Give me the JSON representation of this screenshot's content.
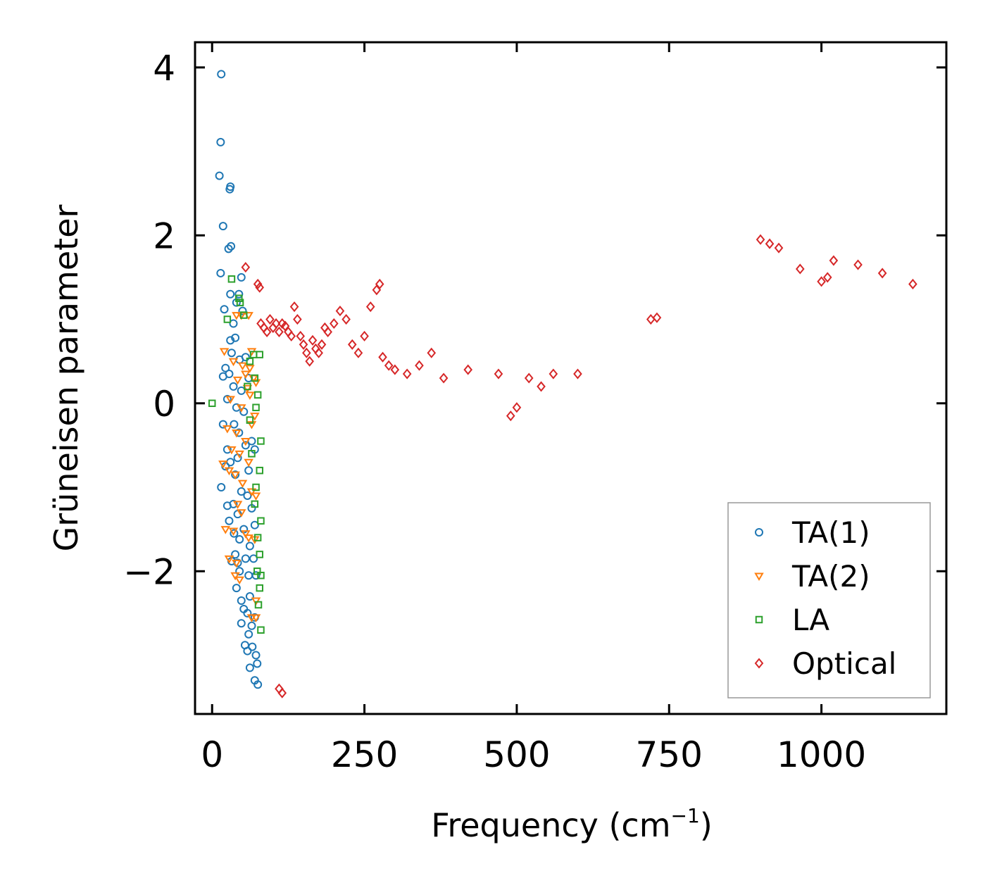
{
  "chart_data": {
    "type": "scatter",
    "title": "",
    "xlabel": "Frequency (cm",
    "xlabel_sup": "−1",
    "xlabel_close": ")",
    "ylabel": "Grüneisen parameter",
    "xlim": [
      -28,
      1205
    ],
    "ylim": [
      -3.7,
      4.3
    ],
    "xticks": [
      0,
      250,
      500,
      750,
      1000
    ],
    "xtick_labels": [
      "0",
      "250",
      "500",
      "750",
      "1000"
    ],
    "yticks": [
      -2,
      0,
      2,
      4
    ],
    "ytick_labels": [
      "−2",
      "0",
      "2",
      "4"
    ],
    "legend_position": "lower-right",
    "grid": false,
    "series": [
      {
        "name": "TA(1)",
        "marker": "circle",
        "color": "#1f77b4",
        "x": [
          15,
          14,
          12,
          30,
          29,
          18,
          27,
          31,
          14,
          48,
          44,
          30,
          40,
          20,
          50,
          35,
          30,
          38,
          32,
          45,
          55,
          22,
          28,
          60,
          18,
          35,
          48,
          25,
          40,
          52,
          36,
          44,
          18,
          25,
          55,
          65,
          42,
          70,
          22,
          30,
          38,
          60,
          15,
          48,
          58,
          35,
          25,
          65,
          42,
          28,
          70,
          52,
          36,
          45,
          38,
          62,
          68,
          55,
          42,
          32,
          45,
          60,
          72,
          40,
          48,
          62,
          52,
          58,
          70,
          65,
          48,
          60,
          54,
          66,
          58,
          72,
          74,
          62,
          70,
          75
        ],
        "y": [
          3.92,
          3.11,
          2.71,
          2.58,
          2.55,
          2.11,
          1.84,
          1.87,
          1.55,
          1.5,
          1.3,
          1.3,
          1.2,
          1.12,
          1.1,
          0.95,
          0.75,
          0.78,
          0.6,
          0.52,
          0.55,
          0.42,
          0.35,
          0.3,
          0.32,
          0.2,
          0.15,
          0.05,
          -0.05,
          -0.1,
          -0.25,
          -0.35,
          -0.25,
          -0.55,
          -0.5,
          -0.45,
          -0.65,
          -0.55,
          -0.75,
          -0.7,
          -0.85,
          -0.8,
          -1.0,
          -1.05,
          -1.1,
          -1.2,
          -1.22,
          -1.25,
          -1.32,
          -1.4,
          -1.45,
          -1.5,
          -1.55,
          -1.62,
          -1.8,
          -1.7,
          -1.85,
          -1.85,
          -1.9,
          -1.88,
          -2.0,
          -2.05,
          -2.05,
          -2.2,
          -2.35,
          -2.3,
          -2.45,
          -2.5,
          -2.55,
          -2.65,
          -2.62,
          -2.75,
          -2.88,
          -2.9,
          -2.95,
          -3.0,
          -3.1,
          -3.15,
          -3.3,
          -3.35
        ]
      },
      {
        "name": "TA(2)",
        "marker": "triangle-down",
        "color": "#ff7f0e",
        "x": [
          40,
          48,
          60,
          65,
          20,
          35,
          50,
          62,
          55,
          68,
          42,
          72,
          58,
          62,
          30,
          48,
          70,
          65,
          40,
          25,
          55,
          32,
          45,
          60,
          18,
          28,
          38,
          50,
          65,
          72,
          42,
          48,
          22,
          35,
          55,
          60,
          70,
          28,
          40,
          38,
          45,
          72,
          65,
          72
        ],
        "y": [
          1.05,
          1.05,
          1.05,
          0.62,
          0.62,
          0.5,
          0.45,
          0.42,
          0.35,
          0.3,
          0.28,
          0.25,
          0.18,
          0.1,
          0.05,
          -0.05,
          -0.15,
          -0.25,
          -0.35,
          -0.3,
          -0.45,
          -0.55,
          -0.6,
          -0.7,
          -0.72,
          -0.8,
          -0.85,
          -0.95,
          -1.05,
          -1.1,
          -1.2,
          -1.3,
          -1.5,
          -1.52,
          -1.55,
          -1.6,
          -1.62,
          -1.85,
          -1.9,
          -2.05,
          -2.1,
          -2.35,
          -2.55,
          -2.55
        ]
      },
      {
        "name": "LA",
        "marker": "square",
        "color": "#2ca02c",
        "x": [
          0,
          32,
          44,
          46,
          25,
          52,
          68,
          78,
          62,
          70,
          58,
          75,
          72,
          62,
          80,
          65,
          78,
          72,
          70,
          80,
          75,
          78,
          74,
          80,
          78,
          76,
          80
        ],
        "y": [
          0.0,
          1.48,
          1.25,
          1.2,
          1.0,
          1.05,
          0.58,
          0.58,
          0.5,
          0.3,
          0.2,
          0.1,
          -0.05,
          -0.2,
          -0.45,
          -0.6,
          -0.8,
          -1.0,
          -1.2,
          -1.4,
          -1.6,
          -1.8,
          -2.0,
          -2.05,
          -2.2,
          -2.4,
          -2.7
        ]
      },
      {
        "name": "Optical",
        "marker": "diamond",
        "color": "#d62728",
        "x": [
          55,
          75,
          78,
          80,
          85,
          90,
          95,
          100,
          105,
          110,
          115,
          120,
          125,
          130,
          135,
          140,
          145,
          150,
          155,
          160,
          165,
          170,
          175,
          180,
          185,
          190,
          200,
          210,
          220,
          230,
          240,
          250,
          260,
          270,
          275,
          280,
          290,
          300,
          320,
          340,
          360,
          380,
          420,
          470,
          490,
          500,
          520,
          540,
          560,
          600,
          720,
          730,
          900,
          915,
          930,
          965,
          1000,
          1010,
          1020,
          1060,
          1100,
          1150,
          110,
          115
        ],
        "y": [
          1.62,
          1.42,
          1.38,
          0.95,
          0.9,
          0.85,
          1.0,
          0.9,
          0.95,
          0.85,
          0.95,
          0.92,
          0.85,
          0.8,
          1.15,
          1.0,
          0.8,
          0.7,
          0.6,
          0.5,
          0.75,
          0.65,
          0.6,
          0.7,
          0.9,
          0.85,
          0.95,
          1.1,
          1.0,
          0.7,
          0.6,
          0.8,
          1.15,
          1.35,
          1.42,
          0.55,
          0.45,
          0.4,
          0.35,
          0.45,
          0.6,
          0.3,
          0.4,
          0.35,
          -0.15,
          -0.05,
          0.3,
          0.2,
          0.35,
          0.35,
          1.0,
          1.02,
          1.95,
          1.9,
          1.85,
          1.6,
          1.45,
          1.5,
          1.7,
          1.65,
          1.55,
          1.42,
          -3.4,
          -3.45
        ]
      }
    ]
  }
}
